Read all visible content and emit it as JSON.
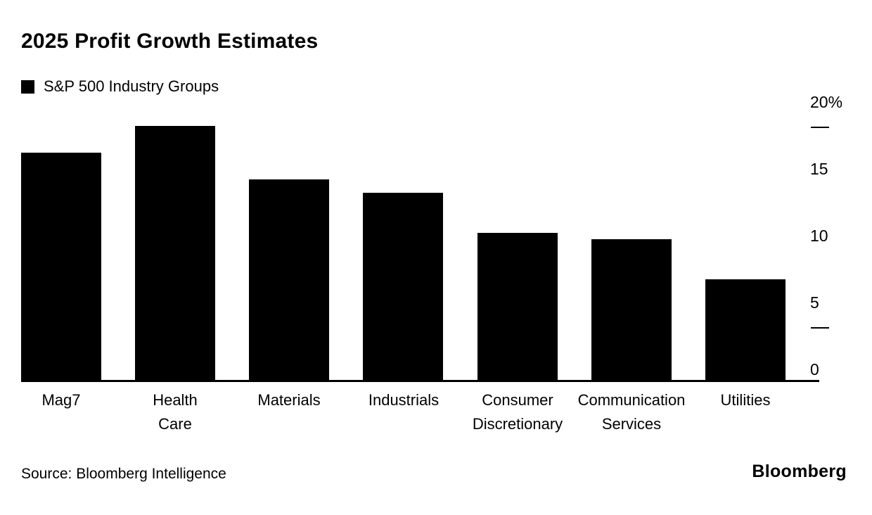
{
  "chart_data": {
    "type": "bar",
    "title": "2025 Profit Growth Estimates",
    "legend": "S&P 500 Industry Groups",
    "categories": [
      "Mag7",
      "Health Care",
      "Materials",
      "Industrials",
      "Consumer Discretionary",
      "Communication Services",
      "Utilities"
    ],
    "values": [
      17,
      19,
      15,
      14,
      11,
      10.5,
      7.5
    ],
    "unit": "%",
    "ylim": [
      0,
      20
    ],
    "yticks": [
      {
        "label": "20%",
        "value": 20,
        "dash": true
      },
      {
        "label": "15",
        "value": 15,
        "dash": false
      },
      {
        "label": "10",
        "value": 10,
        "dash": false
      },
      {
        "label": "5",
        "value": 5,
        "dash": true
      },
      {
        "label": "0",
        "value": 0,
        "dash": false
      }
    ],
    "bar_color": "#000000",
    "grid": false,
    "legend_position": "top-left",
    "axis_side": "right"
  },
  "footer": {
    "source": "Source: Bloomberg Intelligence",
    "brand": "Bloomberg"
  }
}
